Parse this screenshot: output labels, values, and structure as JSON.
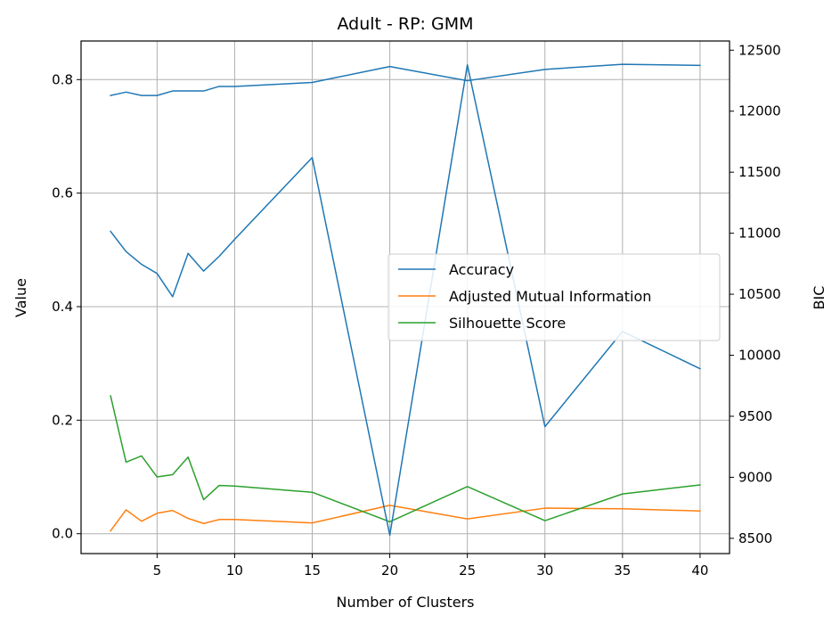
{
  "chart_data": {
    "type": "line",
    "title": "Adult - RP: GMM",
    "xlabel": "Number of Clusters",
    "ylabel": "Value",
    "ylabel_right": "BIC",
    "xlim": [
      0.1,
      41.9
    ],
    "ylim": [
      -0.035,
      0.868
    ],
    "ylim_right": [
      8375,
      12575
    ],
    "xticks": [
      5,
      10,
      15,
      20,
      25,
      30,
      35,
      40
    ],
    "yticks": [
      0.0,
      0.2,
      0.4,
      0.6,
      0.8
    ],
    "yticks_right": [
      8500,
      9000,
      9500,
      10000,
      10500,
      11000,
      11500,
      12000,
      12500
    ],
    "grid": true,
    "legend_position": "center-right",
    "series": [
      {
        "name": "Accuracy",
        "axis": "left",
        "color": "#1f77b4",
        "x": [
          2,
          3,
          4,
          5,
          6,
          7,
          8,
          9,
          10,
          15,
          20,
          25,
          30,
          35,
          40
        ],
        "values": [
          0.772,
          0.778,
          0.772,
          0.772,
          0.78,
          0.78,
          0.78,
          0.788,
          0.788,
          0.795,
          0.823,
          0.798,
          0.818,
          0.827,
          0.825
        ]
      },
      {
        "name": "Adjusted Mutual Information",
        "axis": "left",
        "color": "#ff7f0e",
        "x": [
          2,
          3,
          4,
          5,
          6,
          7,
          8,
          9,
          10,
          15,
          20,
          25,
          30,
          35,
          40
        ],
        "values": [
          0.005,
          0.042,
          0.022,
          0.036,
          0.041,
          0.027,
          0.018,
          0.025,
          0.025,
          0.019,
          0.05,
          0.026,
          0.045,
          0.044,
          0.04
        ]
      },
      {
        "name": "Silhouette Score",
        "axis": "left",
        "color": "#2ca02c",
        "x": [
          2,
          3,
          4,
          5,
          6,
          7,
          8,
          9,
          10,
          15,
          20,
          25,
          30,
          35,
          40
        ],
        "values": [
          0.243,
          0.126,
          0.137,
          0.1,
          0.104,
          0.135,
          0.06,
          0.085,
          0.084,
          0.073,
          0.021,
          0.083,
          0.023,
          0.07,
          0.086
        ]
      },
      {
        "axis": "right",
        "color": "#1f77b4",
        "x": [
          2,
          3,
          4,
          5,
          6,
          7,
          8,
          9,
          10,
          15,
          20,
          25,
          30,
          35,
          40
        ],
        "values": [
          11015,
          10850,
          10745,
          10670,
          10480,
          10835,
          10690,
          10810,
          10950,
          11620,
          8525,
          12380,
          9415,
          10195,
          9890
        ]
      }
    ]
  }
}
